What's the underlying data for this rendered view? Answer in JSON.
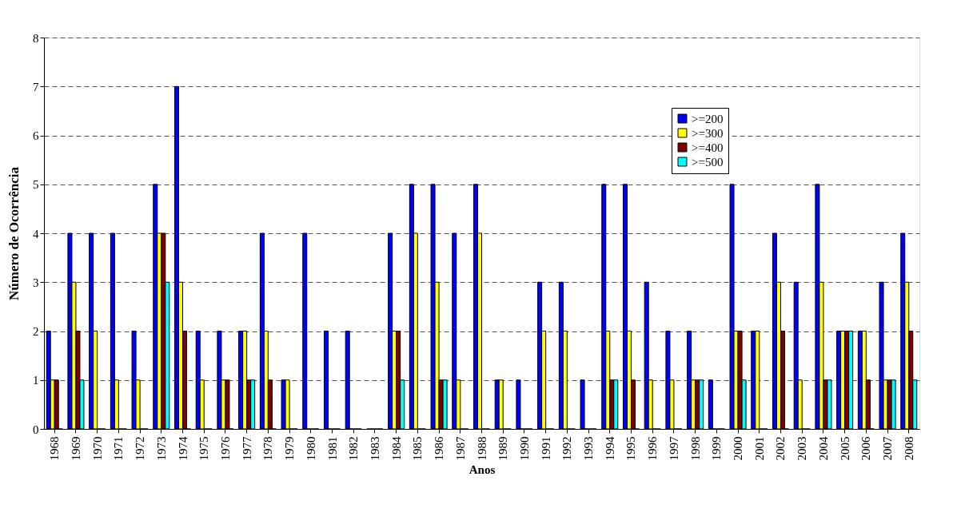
{
  "chart_data": {
    "type": "bar",
    "xlabel": "Anos",
    "ylabel": "Número de Ocorrência",
    "categories": [
      "1968",
      "1969",
      "1970",
      "1971",
      "1972",
      "1973",
      "1974",
      "1975",
      "1976",
      "1977",
      "1978",
      "1979",
      "1980",
      "1981",
      "1982",
      "1983",
      "1984",
      "1985",
      "1986",
      "1987",
      "1988",
      "1989",
      "1990",
      "1991",
      "1992",
      "1993",
      "1994",
      "1995",
      "1996",
      "1997",
      "1998",
      "1999",
      "2000",
      "2001",
      "2002",
      "2003",
      "2004",
      "2005",
      "2006",
      "2007",
      "2008"
    ],
    "series": [
      {
        "name": ">=200",
        "color": "#0000ff",
        "values": [
          2,
          4,
          4,
          4,
          2,
          5,
          7,
          2,
          2,
          2,
          4,
          1,
          4,
          2,
          2,
          0,
          4,
          5,
          5,
          4,
          5,
          1,
          1,
          3,
          3,
          1,
          5,
          5,
          3,
          2,
          2,
          1,
          5,
          2,
          4,
          3,
          5,
          2,
          2,
          3,
          4
        ]
      },
      {
        "name": ">=300",
        "color": "#ffff00",
        "values": [
          1,
          3,
          2,
          1,
          1,
          4,
          3,
          1,
          1,
          2,
          2,
          1,
          0,
          0,
          0,
          0,
          2,
          4,
          3,
          1,
          4,
          1,
          0,
          2,
          2,
          0,
          2,
          2,
          1,
          1,
          1,
          0,
          2,
          2,
          3,
          1,
          3,
          2,
          2,
          1,
          3
        ]
      },
      {
        "name": ">=400",
        "color": "#800000",
        "values": [
          1,
          2,
          0,
          0,
          0,
          4,
          2,
          0,
          1,
          1,
          1,
          0,
          0,
          0,
          0,
          0,
          2,
          0,
          1,
          0,
          0,
          0,
          0,
          0,
          0,
          0,
          1,
          1,
          0,
          0,
          1,
          0,
          2,
          0,
          2,
          0,
          1,
          2,
          1,
          1,
          2
        ]
      },
      {
        "name": ">=500",
        "color": "#00ffff",
        "values": [
          0,
          1,
          0,
          0,
          0,
          3,
          0,
          0,
          0,
          1,
          0,
          0,
          0,
          0,
          0,
          0,
          1,
          0,
          1,
          0,
          0,
          0,
          0,
          0,
          0,
          0,
          1,
          0,
          0,
          0,
          1,
          0,
          1,
          0,
          0,
          0,
          1,
          2,
          0,
          1,
          1
        ]
      }
    ],
    "ylim": [
      0,
      8
    ],
    "yticks": [
      0,
      1,
      2,
      3,
      4,
      5,
      6,
      7,
      8
    ],
    "grid": "y",
    "legend": "top right"
  }
}
